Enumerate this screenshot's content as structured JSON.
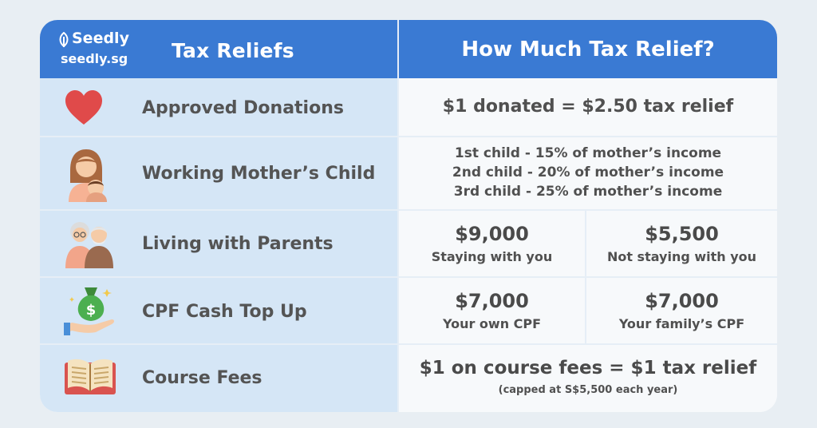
{
  "header": {
    "brand": "Seedly",
    "domain": "seedly.sg",
    "left_title": "Tax Reliefs",
    "right_title": "How Much Tax Relief?"
  },
  "rows": [
    {
      "label": "Approved Donations",
      "icon": "heart-icon",
      "relief": "$1 donated = $2.50 tax relief"
    },
    {
      "label": "Working Mother’s Child",
      "icon": "mother-child-icon",
      "lines": [
        "1st child - 15% of mother’s income",
        "2nd child - 20% of mother’s income",
        "3rd child - 25% of mother’s income"
      ]
    },
    {
      "label": "Living with Parents",
      "icon": "grandparents-icon",
      "left": {
        "amount": "$9,000",
        "note": "Staying with you"
      },
      "right": {
        "amount": "$5,500",
        "note": "Not staying with you"
      }
    },
    {
      "label": "CPF Cash Top Up",
      "icon": "money-bag-hand-icon",
      "left": {
        "amount": "$7,000",
        "note": "Your own CPF"
      },
      "right": {
        "amount": "$7,000",
        "note": "Your family’s CPF"
      }
    },
    {
      "label": "Course Fees",
      "icon": "open-book-icon",
      "relief": "$1 on course fees = $1 tax relief",
      "note": "(capped at S$5,500 each year)"
    }
  ],
  "colors": {
    "header_blue": "#3a7ad3",
    "left_column": "#d5e6f6",
    "right_column": "#f7f9fb",
    "heart_red": "#e04a4a"
  }
}
